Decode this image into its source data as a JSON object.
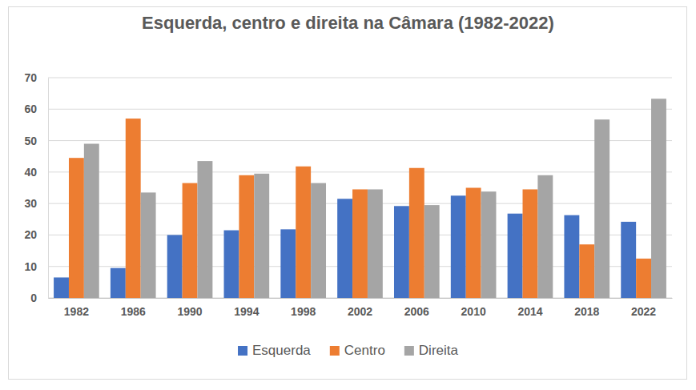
{
  "chart_data": {
    "type": "bar",
    "title": "Esquerda, centro e direita na Câmara (1982-2022)",
    "categories": [
      "1982",
      "1986",
      "1990",
      "1994",
      "1998",
      "2002",
      "2006",
      "2010",
      "2014",
      "2018",
      "2022"
    ],
    "series": [
      {
        "name": "Esquerda",
        "color": "#4472c4",
        "values": [
          6.5,
          9.5,
          20,
          21.5,
          21.8,
          31.5,
          29.2,
          32.5,
          26.8,
          26.3,
          24.2
        ]
      },
      {
        "name": "Centro",
        "color": "#ed7d31",
        "values": [
          44.5,
          57,
          36.5,
          39,
          41.8,
          34.5,
          41.3,
          35,
          34.5,
          17,
          12.5
        ]
      },
      {
        "name": "Direita",
        "color": "#a5a5a5",
        "values": [
          49,
          33.5,
          43.5,
          39.5,
          36.5,
          34.5,
          29.5,
          33.8,
          39,
          56.7,
          63.3
        ]
      }
    ],
    "ylim": [
      0,
      70
    ],
    "yticks": [
      0,
      10,
      20,
      30,
      40,
      50,
      60,
      70
    ],
    "grid": true,
    "legend": "bottom"
  }
}
